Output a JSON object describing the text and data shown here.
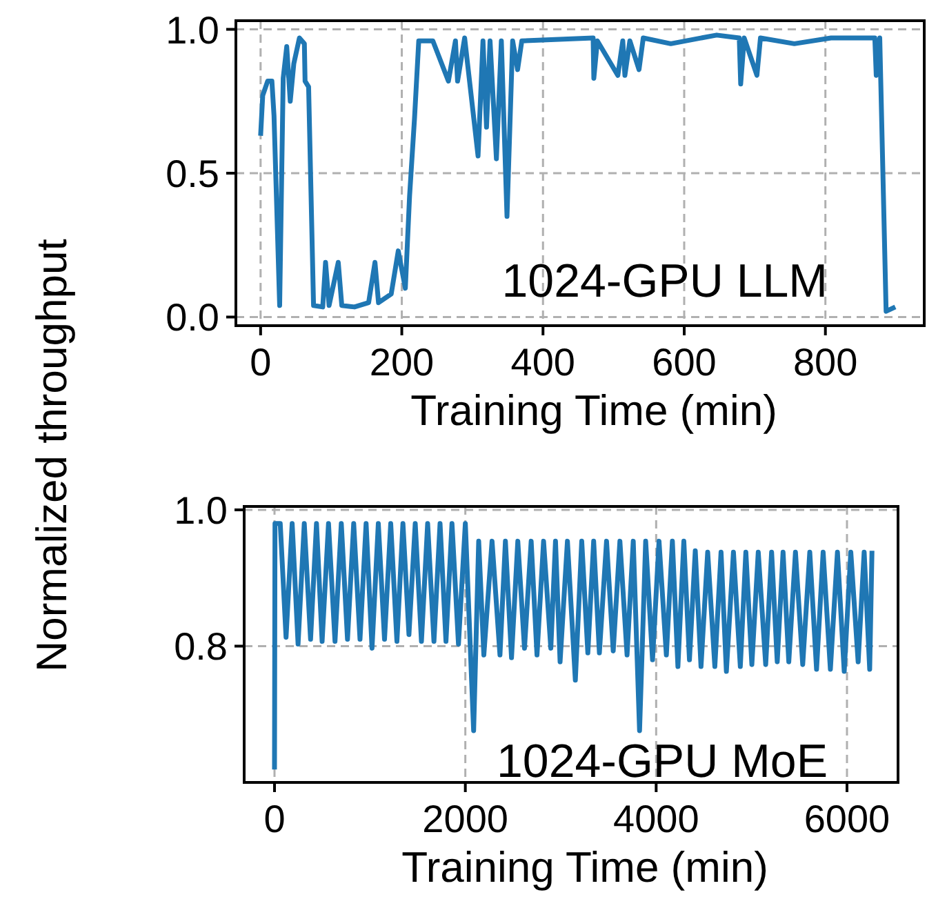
{
  "chart_data": [
    {
      "type": "line",
      "ylabel": "Normalized throughput",
      "xlabel": "Training Time (min)",
      "annotations": [
        "1024-GPU LLM"
      ],
      "color": "#1f77b4",
      "grid": true,
      "line_style": "solid",
      "xlim": [
        -35,
        940
      ],
      "ylim": [
        -0.03,
        1.03
      ],
      "xticks": [
        0,
        200,
        400,
        600,
        800
      ],
      "yticks": [
        {
          "value": 0,
          "label": "0.0"
        },
        {
          "value": 0.5,
          "label": "0.5"
        },
        {
          "value": 1,
          "label": "1.0"
        }
      ],
      "x": [
        0,
        3,
        10,
        16,
        19,
        27,
        32,
        37,
        42,
        47,
        55,
        62,
        63,
        68,
        75,
        88,
        92,
        97,
        110,
        115,
        133,
        153,
        162,
        167,
        185,
        195,
        205,
        211,
        218,
        224,
        244,
        266,
        276,
        279,
        289,
        302,
        308,
        315,
        320,
        325,
        334,
        341,
        349,
        357,
        364,
        370,
        471,
        472,
        477,
        506,
        513,
        516,
        523,
        536,
        542,
        581,
        646,
        678,
        680,
        685,
        703,
        708,
        756,
        808,
        870,
        872,
        877,
        886,
        899
      ],
      "values": [
        0.63,
        0.77,
        0.82,
        0.82,
        0.7,
        0.04,
        0.83,
        0.94,
        0.75,
        0.88,
        0.97,
        0.95,
        0.82,
        0.8,
        0.04,
        0.035,
        0.19,
        0.04,
        0.19,
        0.04,
        0.035,
        0.05,
        0.19,
        0.05,
        0.08,
        0.23,
        0.1,
        0.42,
        0.69,
        0.96,
        0.96,
        0.82,
        0.96,
        0.82,
        0.97,
        0.69,
        0.56,
        0.96,
        0.66,
        0.96,
        0.55,
        0.96,
        0.35,
        0.96,
        0.86,
        0.96,
        0.97,
        0.83,
        0.96,
        0.84,
        0.96,
        0.84,
        0.96,
        0.86,
        0.97,
        0.95,
        0.98,
        0.97,
        0.81,
        0.97,
        0.84,
        0.97,
        0.95,
        0.97,
        0.97,
        0.84,
        0.97,
        0.02,
        0.035
      ]
    },
    {
      "type": "line",
      "xlabel": "Training Time (min)",
      "annotations": [
        "1024-GPU MoE"
      ],
      "color": "#1f77b4",
      "grid": true,
      "line_style": "solid",
      "xlim": [
        -318,
        6535
      ],
      "ylim": [
        0.6,
        1.005
      ],
      "xticks": [
        0,
        2000,
        4000,
        6000
      ],
      "yticks": [
        {
          "value": 0.8,
          "label": "0.8"
        },
        {
          "value": 1,
          "label": "1.0"
        }
      ],
      "x": [
        0,
        5,
        60,
        121,
        185,
        247,
        312,
        378,
        440,
        499,
        566,
        634,
        700,
        765,
        830,
        896,
        960,
        1022,
        1088,
        1153,
        1218,
        1283,
        1346,
        1409,
        1475,
        1540,
        1605,
        1671,
        1735,
        1797,
        1860,
        1928,
        2000,
        2087,
        2140,
        2194,
        2280,
        2363,
        2420,
        2484,
        2550,
        2620,
        2690,
        2751,
        2820,
        2896,
        2945,
        2993,
        3070,
        3153,
        3220,
        3284,
        3345,
        3405,
        3480,
        3550,
        3620,
        3695,
        3760,
        3826,
        3890,
        3962,
        4030,
        4107,
        4170,
        4228,
        4290,
        4349,
        4410,
        4470,
        4540,
        4615,
        4680,
        4736,
        4810,
        4882,
        4940,
        5003,
        5070,
        5148,
        5210,
        5269,
        5330,
        5390,
        5460,
        5536,
        5610,
        5681,
        5750,
        5826,
        5900,
        5971,
        6040,
        6117,
        6180,
        6238,
        6262
      ],
      "values": [
        0.619,
        0.98,
        0.98,
        0.813,
        0.98,
        0.803,
        0.98,
        0.81,
        0.98,
        0.807,
        0.98,
        0.807,
        0.98,
        0.81,
        0.98,
        0.81,
        0.98,
        0.797,
        0.98,
        0.81,
        0.98,
        0.807,
        0.98,
        0.817,
        0.98,
        0.807,
        0.98,
        0.807,
        0.98,
        0.807,
        0.98,
        0.803,
        0.98,
        0.676,
        0.954,
        0.787,
        0.954,
        0.787,
        0.954,
        0.783,
        0.954,
        0.797,
        0.954,
        0.787,
        0.954,
        0.797,
        0.954,
        0.777,
        0.954,
        0.75,
        0.954,
        0.79,
        0.954,
        0.79,
        0.954,
        0.793,
        0.954,
        0.787,
        0.954,
        0.676,
        0.954,
        0.78,
        0.954,
        0.787,
        0.954,
        0.77,
        0.954,
        0.78,
        0.94,
        0.77,
        0.938,
        0.77,
        0.938,
        0.763,
        0.938,
        0.77,
        0.938,
        0.773,
        0.938,
        0.773,
        0.938,
        0.777,
        0.938,
        0.777,
        0.938,
        0.773,
        0.938,
        0.766,
        0.938,
        0.766,
        0.938,
        0.763,
        0.938,
        0.777,
        0.938,
        0.766,
        0.94
      ]
    }
  ]
}
